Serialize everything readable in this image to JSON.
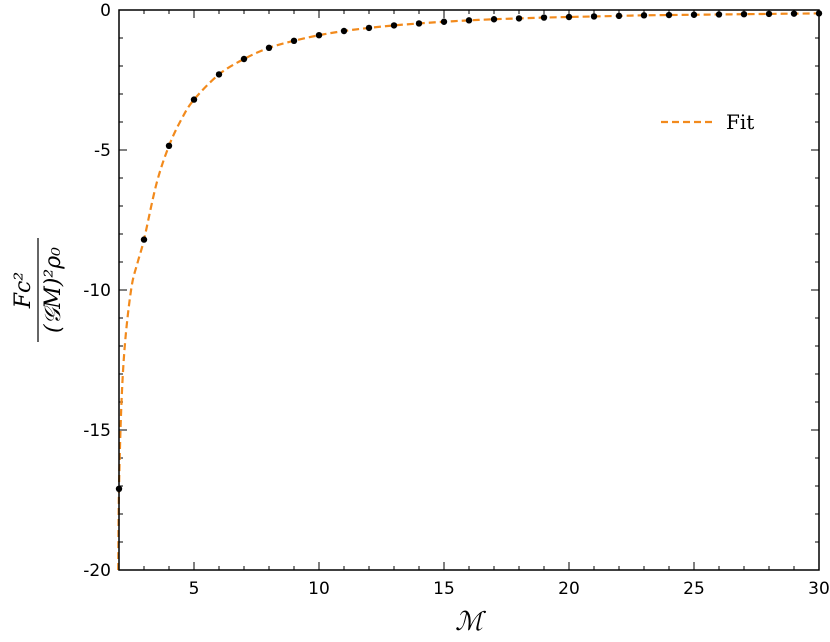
{
  "chart_data": {
    "type": "scatter",
    "title": "",
    "xlabel": "ℳ",
    "ylabel": {
      "numerator": "Fc²",
      "denominator": "(𝒢M)²ρ₀"
    },
    "xlim": [
      2,
      30
    ],
    "ylim": [
      -20,
      0
    ],
    "x_ticks": [
      5,
      10,
      15,
      20,
      25,
      30
    ],
    "y_ticks": [
      0,
      -5,
      -10,
      -15,
      -20
    ],
    "grid": false,
    "legend_position": "upper-right",
    "series": [
      {
        "role": "data-points",
        "marker": "dot",
        "color": "#000000",
        "x": [
          2,
          3,
          4,
          5,
          6,
          7,
          8,
          9,
          10,
          11,
          12,
          13,
          14,
          15,
          16,
          17,
          18,
          19,
          20,
          21,
          22,
          23,
          24,
          25,
          26,
          27,
          28,
          29,
          30
        ],
        "y": [
          -17.1,
          -8.2,
          -4.85,
          -3.2,
          -2.3,
          -1.75,
          -1.35,
          -1.1,
          -0.9,
          -0.75,
          -0.64,
          -0.55,
          -0.48,
          -0.42,
          -0.37,
          -0.33,
          -0.3,
          -0.27,
          -0.25,
          -0.23,
          -0.21,
          -0.19,
          -0.18,
          -0.17,
          -0.16,
          -0.15,
          -0.14,
          -0.13,
          -0.12
        ]
      },
      {
        "name": "Fit",
        "role": "fit-curve",
        "style": "dashed",
        "color": "#f28a1c",
        "x": [
          1.97,
          2,
          2.1,
          2.25,
          2.5,
          2.75,
          3,
          3.5,
          4,
          4.5,
          5,
          6,
          7,
          8,
          9,
          10,
          11,
          12,
          13,
          14,
          15,
          16,
          17,
          18,
          19,
          20,
          21,
          22,
          23,
          24,
          25,
          26,
          27,
          28,
          29,
          30
        ],
        "y": [
          -20,
          -17.1,
          -14.0,
          -11.8,
          -9.9,
          -9.0,
          -8.2,
          -6.2,
          -4.85,
          -3.9,
          -3.2,
          -2.3,
          -1.75,
          -1.35,
          -1.1,
          -0.9,
          -0.75,
          -0.64,
          -0.55,
          -0.48,
          -0.42,
          -0.37,
          -0.33,
          -0.3,
          -0.27,
          -0.25,
          -0.23,
          -0.21,
          -0.19,
          -0.18,
          -0.17,
          -0.16,
          -0.15,
          -0.14,
          -0.13,
          -0.12
        ]
      }
    ]
  }
}
